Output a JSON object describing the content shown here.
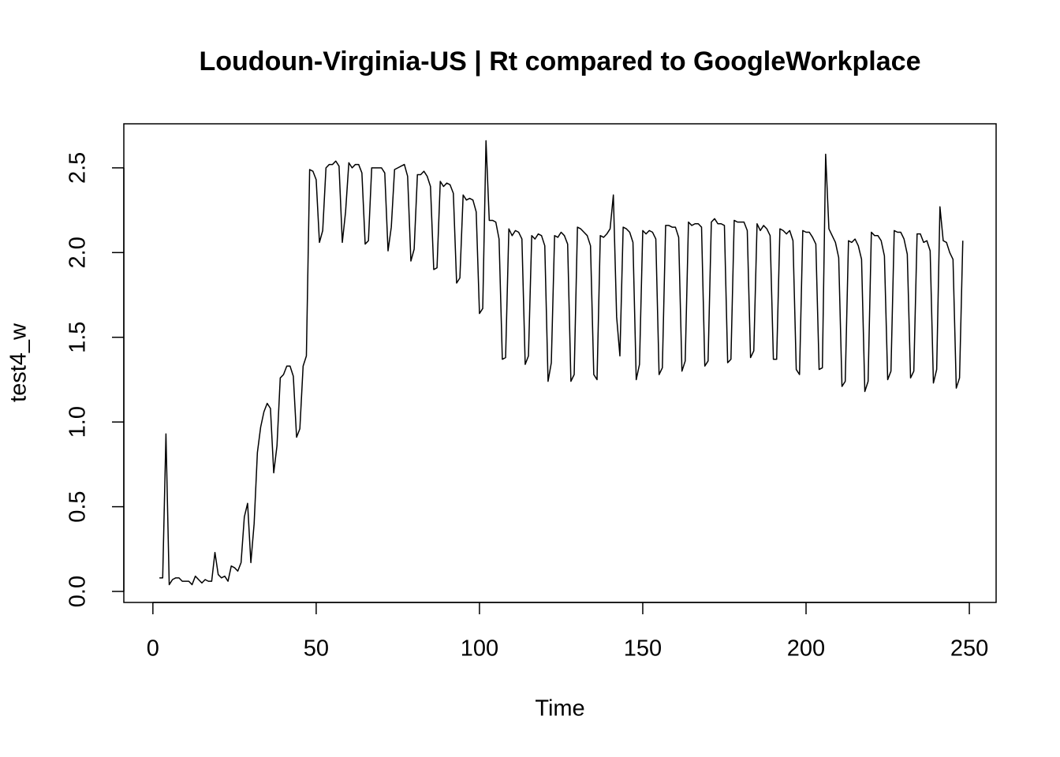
{
  "chart_data": {
    "type": "line",
    "title": "Loudoun-Virginia-US | Rt compared to GoogleWorkplace",
    "x_label": "Time",
    "y_label": "test4_w",
    "x": [
      2,
      3,
      4,
      5,
      6,
      7,
      8,
      9,
      10,
      11,
      12,
      13,
      14,
      15,
      16,
      17,
      18,
      19,
      20,
      21,
      22,
      23,
      24,
      25,
      26,
      27,
      28,
      29,
      30,
      31,
      32,
      33,
      34,
      35,
      36,
      37,
      38,
      39,
      40,
      41,
      42,
      43,
      44,
      45,
      46,
      47,
      48,
      49,
      50,
      51,
      52,
      53,
      54,
      55,
      56,
      57,
      58,
      59,
      60,
      61,
      62,
      63,
      64,
      65,
      66,
      67,
      68,
      69,
      70,
      71,
      72,
      73,
      74,
      75,
      76,
      77,
      78,
      79,
      80,
      81,
      82,
      83,
      84,
      85,
      86,
      87,
      88,
      89,
      90,
      91,
      92,
      93,
      94,
      95,
      96,
      97,
      98,
      99,
      100,
      101,
      102,
      103,
      104,
      105,
      106,
      107,
      108,
      109,
      110,
      111,
      112,
      113,
      114,
      115,
      116,
      117,
      118,
      119,
      120,
      121,
      122,
      123,
      124,
      125,
      126,
      127,
      128,
      129,
      130,
      131,
      132,
      133,
      134,
      135,
      136,
      137,
      138,
      139,
      140,
      141,
      142,
      143,
      144,
      145,
      146,
      147,
      148,
      149,
      150,
      151,
      152,
      153,
      154,
      155,
      156,
      157,
      158,
      159,
      160,
      161,
      162,
      163,
      164,
      165,
      166,
      167,
      168,
      169,
      170,
      171,
      172,
      173,
      174,
      175,
      176,
      177,
      178,
      179,
      180,
      181,
      182,
      183,
      184,
      185,
      186,
      187,
      188,
      189,
      190,
      191,
      192,
      193,
      194,
      195,
      196,
      197,
      198,
      199,
      200,
      201,
      202,
      203,
      204,
      205,
      206,
      207,
      208,
      209,
      210,
      211,
      212,
      213,
      214,
      215,
      216,
      217,
      218,
      219,
      220,
      221,
      222,
      223,
      224,
      225,
      226,
      227,
      228,
      229,
      230,
      231,
      232,
      233,
      234,
      235,
      236,
      237,
      238,
      239,
      240,
      241,
      242,
      243,
      244,
      245,
      246,
      247,
      248
    ],
    "series": [
      {
        "name": "test4_w",
        "color": "#000000",
        "values": [
          0.08,
          0.08,
          0.93,
          0.04,
          0.07,
          0.08,
          0.08,
          0.06,
          0.06,
          0.06,
          0.04,
          0.09,
          0.07,
          0.05,
          0.07,
          0.06,
          0.06,
          0.23,
          0.1,
          0.08,
          0.09,
          0.06,
          0.15,
          0.14,
          0.12,
          0.17,
          0.44,
          0.52,
          0.17,
          0.4,
          0.82,
          0.97,
          1.06,
          1.11,
          1.08,
          0.7,
          0.86,
          1.26,
          1.28,
          1.33,
          1.33,
          1.27,
          0.91,
          0.96,
          1.33,
          1.39,
          2.49,
          2.48,
          2.43,
          2.06,
          2.13,
          2.5,
          2.52,
          2.52,
          2.54,
          2.51,
          2.06,
          2.24,
          2.53,
          2.5,
          2.52,
          2.52,
          2.47,
          2.05,
          2.07,
          2.5,
          2.5,
          2.5,
          2.5,
          2.47,
          2.01,
          2.15,
          2.49,
          2.5,
          2.51,
          2.52,
          2.45,
          1.95,
          2.02,
          2.46,
          2.46,
          2.48,
          2.45,
          2.39,
          1.9,
          1.91,
          2.42,
          2.39,
          2.41,
          2.4,
          2.35,
          1.82,
          1.85,
          2.34,
          2.31,
          2.32,
          2.31,
          2.24,
          1.64,
          1.67,
          2.66,
          2.19,
          2.19,
          2.18,
          2.08,
          1.37,
          1.38,
          2.14,
          2.1,
          2.13,
          2.12,
          2.08,
          1.34,
          1.39,
          2.1,
          2.08,
          2.11,
          2.1,
          2.04,
          1.24,
          1.35,
          2.1,
          2.09,
          2.12,
          2.1,
          2.05,
          1.24,
          1.28,
          2.15,
          2.14,
          2.12,
          2.1,
          2.04,
          1.28,
          1.25,
          2.1,
          2.09,
          2.11,
          2.14,
          2.34,
          1.62,
          1.39,
          2.15,
          2.14,
          2.12,
          2.06,
          1.25,
          1.34,
          2.13,
          2.11,
          2.13,
          2.12,
          2.08,
          1.28,
          1.32,
          2.16,
          2.16,
          2.15,
          2.15,
          2.09,
          1.3,
          1.36,
          2.18,
          2.16,
          2.17,
          2.17,
          2.15,
          1.33,
          1.36,
          2.18,
          2.2,
          2.17,
          2.17,
          2.16,
          1.35,
          1.37,
          2.19,
          2.18,
          2.18,
          2.18,
          2.13,
          1.38,
          1.42,
          2.17,
          2.13,
          2.16,
          2.14,
          2.1,
          1.37,
          1.37,
          2.14,
          2.13,
          2.11,
          2.13,
          2.07,
          1.31,
          1.28,
          2.13,
          2.12,
          2.12,
          2.09,
          2.05,
          1.31,
          1.32,
          2.58,
          2.14,
          2.1,
          2.06,
          1.97,
          1.21,
          1.24,
          2.07,
          2.06,
          2.08,
          2.04,
          1.96,
          1.18,
          1.24,
          2.12,
          2.1,
          2.1,
          2.07,
          1.98,
          1.25,
          1.3,
          2.13,
          2.12,
          2.12,
          2.08,
          1.99,
          1.26,
          1.3,
          2.11,
          2.11,
          2.06,
          2.07,
          2.01,
          1.23,
          1.31,
          2.27,
          2.07,
          2.06,
          2.0,
          1.96,
          1.2,
          1.26,
          2.07
        ]
      }
    ],
    "xlim": [
      -8.9,
      258.2
    ],
    "ylim": [
      -0.065,
      2.76
    ],
    "xticks": [
      0,
      50,
      100,
      150,
      200,
      250
    ],
    "yticks": [
      {
        "value": 0,
        "label": "0.0"
      },
      0.5,
      {
        "value": 1,
        "label": "1.0"
      },
      1.5,
      {
        "value": 2,
        "label": "2.0"
      },
      2.5
    ]
  }
}
